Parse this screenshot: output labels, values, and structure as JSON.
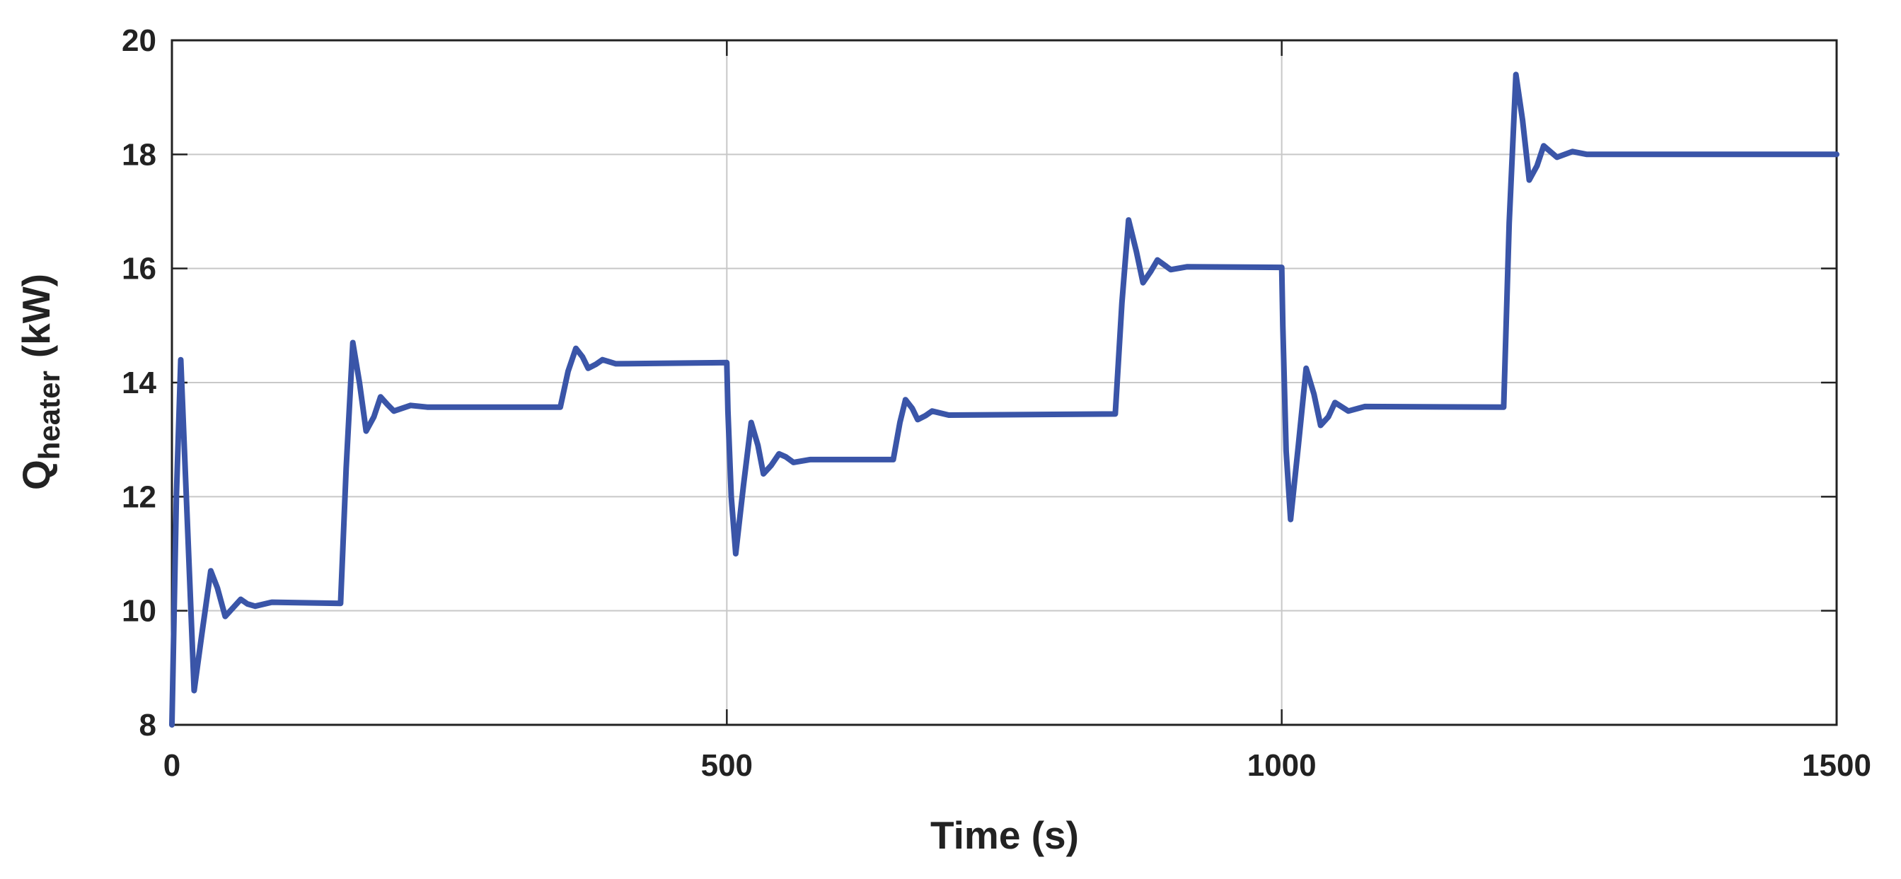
{
  "chart_data": {
    "type": "line",
    "xlabel": "Time (s)",
    "ylabel": "Q",
    "ylabel_subscript": "heater",
    "ylabel_unit": "(kW)",
    "xlim": [
      0,
      1500
    ],
    "xticks": [
      0,
      500,
      1000,
      1500
    ],
    "ylim": [
      8,
      20
    ],
    "yticks": [
      8,
      10,
      12,
      14,
      16,
      18,
      20
    ],
    "grid": true,
    "series": [
      {
        "name": "Q_heater",
        "color": "#3a55a8",
        "x": [
          0,
          4,
          8,
          14,
          20,
          27,
          35,
          41,
          48,
          55,
          62,
          68,
          75,
          90,
          152,
          157,
          163,
          169,
          175,
          182,
          188,
          194,
          200,
          215,
          230,
          350,
          357,
          364,
          370,
          375,
          382,
          388,
          400,
          500,
          501,
          504,
          508,
          515,
          522,
          528,
          533,
          540,
          547,
          553,
          560,
          575,
          650,
          656,
          661,
          667,
          672,
          679,
          685,
          700,
          850,
          856,
          862,
          869,
          875,
          882,
          888,
          900,
          915,
          1000,
          1001,
          1004,
          1008,
          1015,
          1022,
          1029,
          1035,
          1042,
          1048,
          1060,
          1075,
          1200,
          1205,
          1211,
          1217,
          1223,
          1230,
          1236,
          1248,
          1262,
          1275,
          1500
        ],
        "values": [
          8,
          12,
          14.4,
          11.5,
          8.6,
          9.6,
          10.7,
          10.4,
          9.9,
          10.05,
          10.2,
          10.12,
          10.08,
          10.15,
          10.13,
          12.5,
          14.7,
          14.0,
          13.15,
          13.4,
          13.75,
          13.62,
          13.5,
          13.6,
          13.57,
          13.57,
          14.2,
          14.6,
          14.45,
          14.25,
          14.32,
          14.4,
          14.33,
          14.35,
          13.5,
          12.0,
          11.0,
          12.2,
          13.3,
          12.9,
          12.4,
          12.55,
          12.75,
          12.7,
          12.6,
          12.65,
          12.65,
          13.3,
          13.7,
          13.55,
          13.35,
          13.42,
          13.5,
          13.43,
          13.45,
          15.4,
          16.85,
          16.3,
          15.75,
          15.95,
          16.15,
          15.98,
          16.03,
          16.02,
          15.0,
          12.8,
          11.6,
          12.9,
          14.25,
          13.8,
          13.25,
          13.4,
          13.65,
          13.5,
          13.58,
          13.57,
          16.8,
          19.4,
          18.6,
          17.55,
          17.8,
          18.15,
          17.95,
          18.05,
          18.0,
          18.0
        ]
      }
    ]
  }
}
